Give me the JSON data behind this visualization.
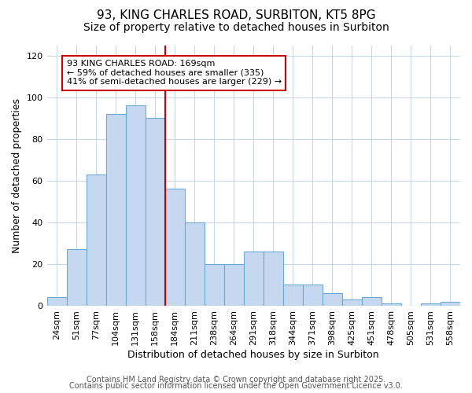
{
  "title1": "93, KING CHARLES ROAD, SURBITON, KT5 8PG",
  "title2": "Size of property relative to detached houses in Surbiton",
  "xlabel": "Distribution of detached houses by size in Surbiton",
  "ylabel": "Number of detached properties",
  "bar_labels": [
    "24sqm",
    "51sqm",
    "77sqm",
    "104sqm",
    "131sqm",
    "158sqm",
    "184sqm",
    "211sqm",
    "238sqm",
    "264sqm",
    "291sqm",
    "318sqm",
    "344sqm",
    "371sqm",
    "398sqm",
    "425sqm",
    "451sqm",
    "478sqm",
    "505sqm",
    "531sqm",
    "558sqm"
  ],
  "bar_values": [
    4,
    27,
    63,
    92,
    96,
    90,
    56,
    40,
    20,
    20,
    26,
    26,
    10,
    10,
    6,
    3,
    4,
    1,
    0,
    1,
    2
  ],
  "bar_color": "#c5d8f0",
  "bar_edgecolor": "#6aaad4",
  "bar_width": 1.0,
  "vline_color": "#cc0000",
  "vline_x": 5.5,
  "annotation_line1": "93 KING CHARLES ROAD: 169sqm",
  "annotation_line2": "← 59% of detached houses are smaller (335)",
  "annotation_line3": "41% of semi-detached houses are larger (229) →",
  "annotation_box_edgecolor": "#cc0000",
  "annotation_box_facecolor": "#ffffff",
  "ylim": [
    0,
    125
  ],
  "yticks": [
    0,
    20,
    40,
    60,
    80,
    100,
    120
  ],
  "background_color": "#ffffff",
  "plot_bg_color": "#ffffff",
  "grid_color": "#c8d8e8",
  "footer1": "Contains HM Land Registry data © Crown copyright and database right 2025.",
  "footer2": "Contains public sector information licensed under the Open Government Licence v3.0.",
  "title_fontsize": 11,
  "subtitle_fontsize": 10,
  "axis_label_fontsize": 9,
  "tick_fontsize": 8,
  "annotation_fontsize": 8,
  "footer_fontsize": 7
}
